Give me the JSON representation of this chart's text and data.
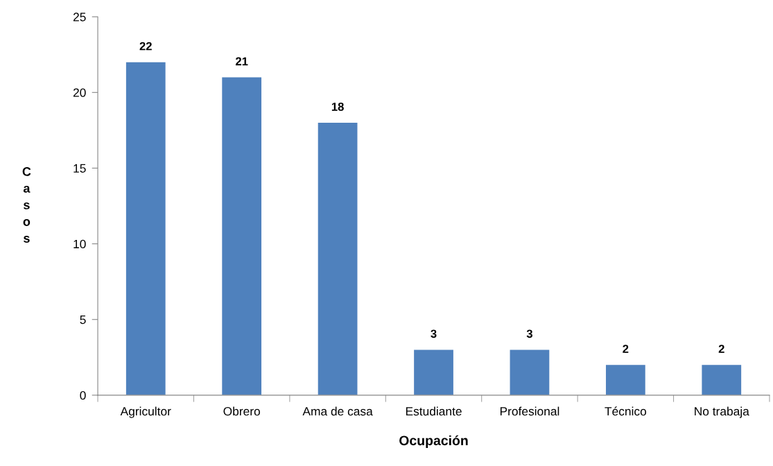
{
  "chart_data": {
    "type": "bar",
    "xlabel": "Ocupación",
    "ylabel": "Casos",
    "categories": [
      "Agricultor",
      "Obrero",
      "Ama de casa",
      "Estudiante",
      "Profesional",
      "Técnico",
      "No trabaja"
    ],
    "values": [
      22,
      21,
      18,
      3,
      3,
      2,
      2
    ],
    "color": "#4f81bd",
    "ylim": [
      0,
      25
    ],
    "yticks": [
      0,
      5,
      10,
      15,
      20,
      25
    ],
    "grid": false,
    "legend": false,
    "data_labels": true
  }
}
